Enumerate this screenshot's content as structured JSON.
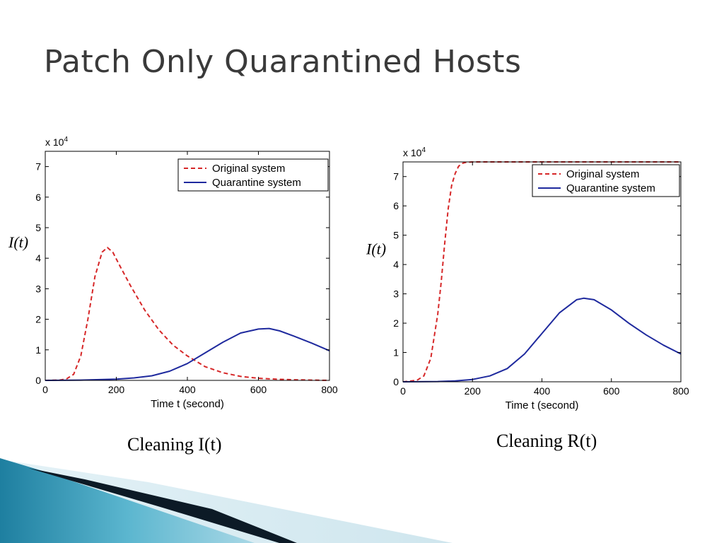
{
  "slide": {
    "title": "Patch Only Quarantined Hosts"
  },
  "captions": {
    "left": "Cleaning I(t)",
    "right": "Cleaning R(t)"
  },
  "colors": {
    "original": "#d62728",
    "quarantine": "#1f2a9e"
  },
  "chart_data": [
    {
      "type": "line",
      "title": "",
      "xlabel": "Time t (second)",
      "ylabel": "I(t)",
      "exponent_label": "x 10",
      "exponent_power": "4",
      "xlim": [
        0,
        800
      ],
      "ylim": [
        0,
        7.5
      ],
      "x_ticks": [
        0,
        200,
        400,
        600,
        800
      ],
      "x_tick_labels": [
        "0",
        "200",
        "400",
        "600",
        "800"
      ],
      "y_ticks": [
        0,
        1,
        2,
        3,
        4,
        5,
        6,
        7
      ],
      "y_tick_labels": [
        "0",
        "1",
        "2",
        "3",
        "4",
        "5",
        "6",
        "7"
      ],
      "grid": false,
      "legend_position": "top-right",
      "series": [
        {
          "name": "Original system",
          "style": "dashed",
          "color": "#d62728",
          "x": [
            0,
            40,
            60,
            80,
            100,
            120,
            140,
            160,
            175,
            190,
            210,
            240,
            280,
            320,
            360,
            400,
            450,
            500,
            550,
            600,
            650,
            700,
            750,
            800
          ],
          "y": [
            0,
            0.01,
            0.05,
            0.2,
            0.8,
            2.0,
            3.4,
            4.2,
            4.35,
            4.2,
            3.75,
            3.1,
            2.3,
            1.65,
            1.15,
            0.8,
            0.45,
            0.25,
            0.13,
            0.07,
            0.04,
            0.02,
            0.01,
            0.0
          ]
        },
        {
          "name": "Quarantine system",
          "style": "solid",
          "color": "#1f2a9e",
          "x": [
            0,
            100,
            200,
            250,
            300,
            350,
            400,
            450,
            500,
            550,
            600,
            630,
            660,
            700,
            750,
            800
          ],
          "y": [
            0,
            0.01,
            0.04,
            0.08,
            0.15,
            0.3,
            0.55,
            0.9,
            1.25,
            1.55,
            1.68,
            1.7,
            1.62,
            1.45,
            1.22,
            0.97
          ]
        }
      ]
    },
    {
      "type": "line",
      "title": "",
      "xlabel": "Time t (second)",
      "ylabel": "I(t)",
      "exponent_label": "x 10",
      "exponent_power": "4",
      "xlim": [
        0,
        800
      ],
      "ylim": [
        0,
        7.5
      ],
      "x_ticks": [
        0,
        200,
        400,
        600,
        800
      ],
      "x_tick_labels": [
        "0",
        "200",
        "400",
        "600",
        "800"
      ],
      "y_ticks": [
        0,
        1,
        2,
        3,
        4,
        5,
        6,
        7
      ],
      "y_tick_labels": [
        "0",
        "1",
        "2",
        "3",
        "4",
        "5",
        "6",
        "7"
      ],
      "grid": false,
      "legend_position": "top-right",
      "series": [
        {
          "name": "Original system",
          "style": "dashed",
          "color": "#d62728",
          "x": [
            0,
            40,
            60,
            80,
            100,
            110,
            120,
            130,
            140,
            150,
            160,
            170,
            180,
            200,
            250,
            300,
            800
          ],
          "y": [
            0,
            0.05,
            0.2,
            0.8,
            2.3,
            3.4,
            4.7,
            5.9,
            6.7,
            7.1,
            7.35,
            7.45,
            7.48,
            7.5,
            7.5,
            7.5,
            7.5
          ]
        },
        {
          "name": "Quarantine system",
          "style": "solid",
          "color": "#1f2a9e",
          "x": [
            0,
            100,
            150,
            200,
            250,
            300,
            350,
            400,
            450,
            500,
            520,
            550,
            600,
            650,
            700,
            750,
            800
          ],
          "y": [
            0,
            0.01,
            0.03,
            0.08,
            0.2,
            0.45,
            0.95,
            1.65,
            2.35,
            2.8,
            2.85,
            2.8,
            2.45,
            2.0,
            1.6,
            1.25,
            0.95
          ]
        }
      ]
    }
  ]
}
